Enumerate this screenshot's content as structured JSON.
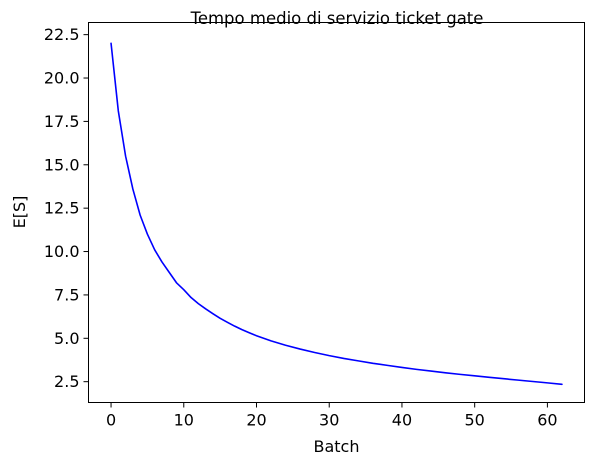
{
  "chart_data": {
    "type": "line",
    "title": "Tempo medio di servizio ticket gate",
    "xlabel": "Batch",
    "ylabel": "E[S]",
    "xlim": [
      -3.1,
      65.1
    ],
    "ylim": [
      1.3,
      23.2
    ],
    "xticks": [
      0,
      10,
      20,
      30,
      40,
      50,
      60
    ],
    "xtick_labels": [
      "0",
      "10",
      "20",
      "30",
      "40",
      "50",
      "60"
    ],
    "yticks": [
      2.5,
      5.0,
      7.5,
      10.0,
      12.5,
      15.0,
      17.5,
      20.0,
      22.5
    ],
    "ytick_labels": [
      "2.5",
      "5.0",
      "7.5",
      "10.0",
      "12.5",
      "15.0",
      "17.5",
      "20.0",
      "22.5"
    ],
    "grid": false,
    "series": [
      {
        "color": "#0000ff",
        "x": [
          0,
          1,
          2,
          3,
          4,
          5,
          6,
          7,
          8,
          9,
          10,
          11,
          12,
          13,
          14,
          15,
          16,
          17,
          18,
          19,
          20,
          22,
          24,
          26,
          28,
          30,
          32,
          34,
          36,
          38,
          40,
          42,
          44,
          46,
          48,
          50,
          52,
          54,
          56,
          58,
          60,
          62
        ],
        "y": [
          22.0,
          18.1,
          15.5,
          13.6,
          12.1,
          11.0,
          10.1,
          9.4,
          8.8,
          8.2,
          7.8,
          7.35,
          7.0,
          6.7,
          6.42,
          6.15,
          5.92,
          5.7,
          5.5,
          5.32,
          5.15,
          4.85,
          4.6,
          4.38,
          4.18,
          4.0,
          3.84,
          3.7,
          3.56,
          3.44,
          3.32,
          3.21,
          3.11,
          3.01,
          2.92,
          2.84,
          2.75,
          2.67,
          2.59,
          2.51,
          2.43,
          2.35
        ]
      }
    ]
  }
}
